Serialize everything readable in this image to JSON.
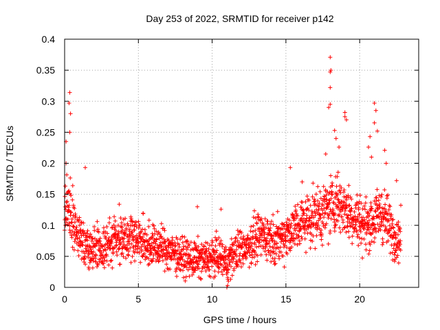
{
  "chart_data": {
    "type": "scatter",
    "title": "Day 253 of 2022, SRMTID for receiver p142",
    "xlabel": "GPS time / hours",
    "ylabel": "SRMTID / TECUs",
    "xlim": [
      0,
      24
    ],
    "ylim": [
      0,
      0.4
    ],
    "xticks": [
      0,
      5,
      10,
      15,
      20
    ],
    "xtick_labels": [
      "0",
      "5",
      "10",
      "15",
      "20"
    ],
    "yticks": [
      0,
      0.05,
      0.1,
      0.15,
      0.2,
      0.25,
      0.3,
      0.35,
      0.4
    ],
    "ytick_labels": [
      "0",
      "0.05",
      "0.1",
      "0.15",
      "0.2",
      "0.25",
      "0.3",
      "0.35",
      "0.4"
    ],
    "grid": true,
    "marker": "plus",
    "marker_color": "#ff0000",
    "series": [
      {
        "name": "SRMTID",
        "baseline_profile": {
          "x": [
            0,
            0.3,
            0.8,
            1.5,
            2.5,
            3.5,
            4.5,
            5.5,
            6.5,
            7.5,
            8.5,
            9.5,
            10.5,
            11.0,
            11.5,
            12.5,
            13.5,
            14.5,
            15.5,
            16.5,
            17.5,
            18.5,
            19.5,
            20.5,
            21.5,
            22.5,
            22.8
          ],
          "y": [
            0.11,
            0.13,
            0.09,
            0.07,
            0.06,
            0.08,
            0.085,
            0.07,
            0.065,
            0.055,
            0.045,
            0.045,
            0.05,
            0.04,
            0.055,
            0.07,
            0.085,
            0.075,
            0.095,
            0.11,
            0.12,
            0.14,
            0.115,
            0.1,
            0.12,
            0.08,
            0.08
          ]
        },
        "peaks": [
          {
            "x": 0.35,
            "y": 0.314
          },
          {
            "x": 0.3,
            "y": 0.297
          },
          {
            "x": 0.4,
            "y": 0.28
          },
          {
            "x": 0.35,
            "y": 0.25
          },
          {
            "x": 0.1,
            "y": 0.235
          },
          {
            "x": 0.1,
            "y": 0.2
          },
          {
            "x": 1.4,
            "y": 0.193
          },
          {
            "x": 3.7,
            "y": 0.134
          },
          {
            "x": 9.0,
            "y": 0.13
          },
          {
            "x": 10.6,
            "y": 0.126
          },
          {
            "x": 15.3,
            "y": 0.193
          },
          {
            "x": 16.1,
            "y": 0.17
          },
          {
            "x": 17.7,
            "y": 0.215
          },
          {
            "x": 18.0,
            "y": 0.371
          },
          {
            "x": 18.05,
            "y": 0.35
          },
          {
            "x": 18.0,
            "y": 0.347
          },
          {
            "x": 18.0,
            "y": 0.322
          },
          {
            "x": 18.0,
            "y": 0.295
          },
          {
            "x": 17.9,
            "y": 0.29
          },
          {
            "x": 18.3,
            "y": 0.253
          },
          {
            "x": 18.4,
            "y": 0.24
          },
          {
            "x": 19.0,
            "y": 0.282
          },
          {
            "x": 19.0,
            "y": 0.275
          },
          {
            "x": 19.1,
            "y": 0.27
          },
          {
            "x": 18.6,
            "y": 0.226
          },
          {
            "x": 21.0,
            "y": 0.297
          },
          {
            "x": 21.1,
            "y": 0.285
          },
          {
            "x": 21.0,
            "y": 0.265
          },
          {
            "x": 21.2,
            "y": 0.252
          },
          {
            "x": 20.7,
            "y": 0.243
          },
          {
            "x": 20.6,
            "y": 0.226
          },
          {
            "x": 20.8,
            "y": 0.21
          },
          {
            "x": 21.7,
            "y": 0.221
          },
          {
            "x": 21.8,
            "y": 0.2
          },
          {
            "x": 22.5,
            "y": 0.172
          }
        ],
        "lows": [
          {
            "x": 11.0,
            "y": 0.0
          },
          {
            "x": 11.05,
            "y": 0.003
          },
          {
            "x": 11.1,
            "y": 0.01
          }
        ]
      }
    ]
  }
}
